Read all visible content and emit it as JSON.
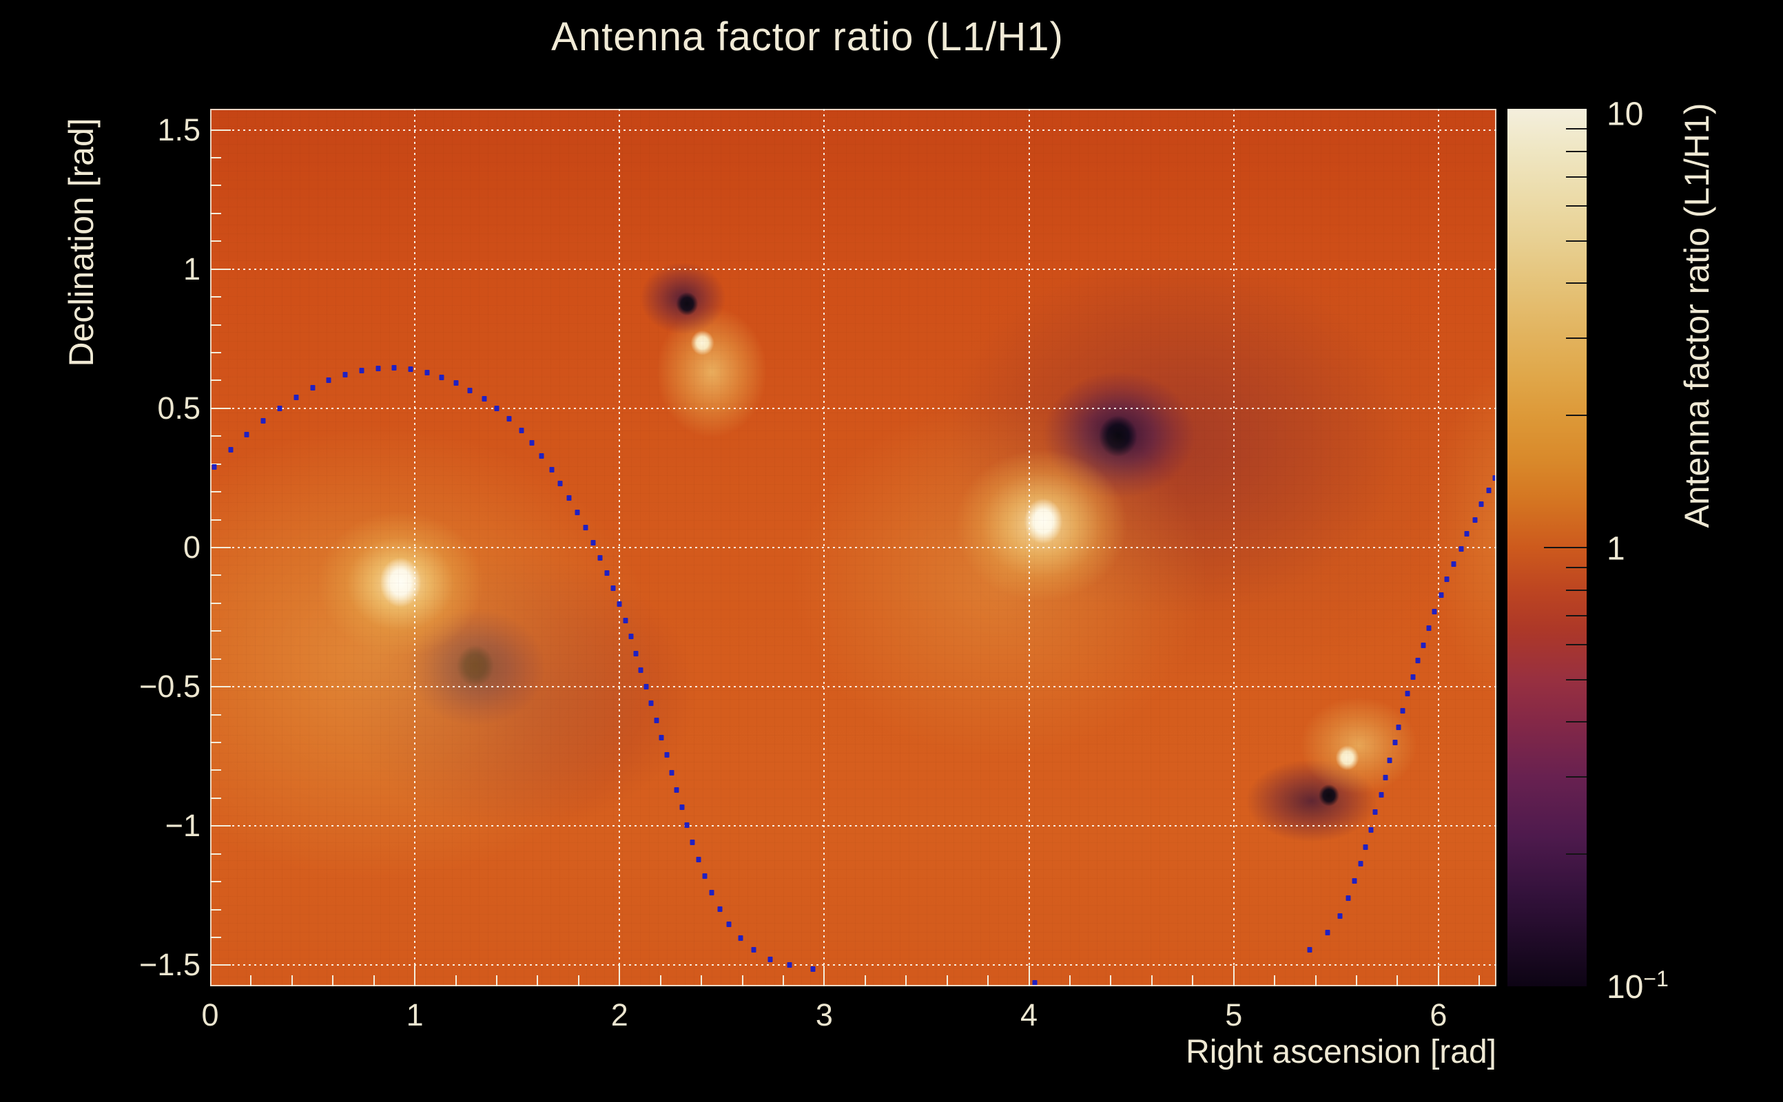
{
  "chart_data": {
    "type": "heatmap",
    "title": "Antenna factor ratio (L1/H1)",
    "xlabel": "Right ascension [rad]",
    "ylabel": "Declination [rad]",
    "zlabel": "Antenna factor ratio (L1/H1)",
    "x_range": [
      0,
      6.2832
    ],
    "y_range": [
      -1.5755,
      1.5755
    ],
    "z_scale": "log",
    "z_range": [
      0.1,
      10
    ],
    "x_major_ticks": [
      0,
      1,
      2,
      3,
      4,
      5,
      6
    ],
    "x_tick_labels": [
      "0",
      "1",
      "2",
      "3",
      "4",
      "5",
      "6"
    ],
    "x_minor_step": 0.2,
    "y_major_ticks": [
      1.5,
      1,
      0.5,
      0,
      -0.5,
      -1,
      -1.5
    ],
    "y_tick_labels": [
      "1.5",
      "1",
      "0.5",
      "0",
      "−0.5",
      "−1",
      "−1.5"
    ],
    "y_minor_step": 0.1,
    "grid": {
      "style": "dotted",
      "color": "#fdfaf2",
      "at_x": [
        1,
        2,
        3,
        4,
        5,
        6
      ],
      "at_y": [
        1.5,
        1.0,
        0.5,
        0,
        -0.5,
        -1.0,
        -1.5
      ]
    },
    "text_color": "#efe9d4",
    "background_color": "#000000",
    "extrema": [
      {
        "kind": "maximum",
        "ra": 0.93,
        "dec": -0.13,
        "value": 10
      },
      {
        "kind": "minimum",
        "ra": 1.3,
        "dec": -0.43,
        "value": 0.1
      },
      {
        "kind": "minimum",
        "ra": 2.33,
        "dec": 0.88,
        "value": 0.1
      },
      {
        "kind": "maximum",
        "ra": 2.41,
        "dec": 0.74,
        "value": 10
      },
      {
        "kind": "maximum",
        "ra": 4.07,
        "dec": 0.1,
        "value": 10
      },
      {
        "kind": "minimum",
        "ra": 4.44,
        "dec": 0.4,
        "value": 0.1
      },
      {
        "kind": "maximum",
        "ra": 5.56,
        "dec": -0.76,
        "value": 10
      },
      {
        "kind": "minimum",
        "ra": 5.47,
        "dec": -0.89,
        "value": 0.1
      }
    ],
    "track_marker_color": "#2020c2",
    "track_points": [
      [
        0.02,
        0.29
      ],
      [
        0.1,
        0.35
      ],
      [
        0.18,
        0.405
      ],
      [
        0.26,
        0.455
      ],
      [
        0.34,
        0.5
      ],
      [
        0.42,
        0.54
      ],
      [
        0.5,
        0.573
      ],
      [
        0.58,
        0.6
      ],
      [
        0.66,
        0.621
      ],
      [
        0.74,
        0.635
      ],
      [
        0.82,
        0.643
      ],
      [
        0.9,
        0.645
      ],
      [
        0.98,
        0.64
      ],
      [
        1.06,
        0.628
      ],
      [
        1.13,
        0.612
      ],
      [
        1.2,
        0.59
      ],
      [
        1.27,
        0.565
      ],
      [
        1.34,
        0.534
      ],
      [
        1.4,
        0.5
      ],
      [
        1.46,
        0.462
      ],
      [
        1.52,
        0.42
      ],
      [
        1.57,
        0.376
      ],
      [
        1.62,
        0.33
      ],
      [
        1.67,
        0.28
      ],
      [
        1.71,
        0.23
      ],
      [
        1.755,
        0.178
      ],
      [
        1.795,
        0.125
      ],
      [
        1.835,
        0.072
      ],
      [
        1.87,
        0.018
      ],
      [
        1.905,
        -0.037
      ],
      [
        1.94,
        -0.092
      ],
      [
        1.97,
        -0.147
      ],
      [
        2.0,
        -0.204
      ],
      [
        2.03,
        -0.262
      ],
      [
        2.055,
        -0.32
      ],
      [
        2.08,
        -0.38
      ],
      [
        2.105,
        -0.44
      ],
      [
        2.13,
        -0.5
      ],
      [
        2.155,
        -0.56
      ],
      [
        2.18,
        -0.62
      ],
      [
        2.205,
        -0.682
      ],
      [
        2.23,
        -0.745
      ],
      [
        2.255,
        -0.808
      ],
      [
        2.28,
        -0.87
      ],
      [
        2.305,
        -0.933
      ],
      [
        2.33,
        -0.996
      ],
      [
        2.355,
        -1.058
      ],
      [
        2.385,
        -1.12
      ],
      [
        2.415,
        -1.18
      ],
      [
        2.45,
        -1.24
      ],
      [
        2.49,
        -1.298
      ],
      [
        2.535,
        -1.352
      ],
      [
        2.59,
        -1.402
      ],
      [
        2.655,
        -1.445
      ],
      [
        2.735,
        -1.478
      ],
      [
        2.83,
        -1.5
      ],
      [
        2.945,
        -1.513
      ],
      [
        4.03,
        -1.562
      ],
      [
        5.37,
        -1.445
      ],
      [
        5.46,
        -1.383
      ],
      [
        5.52,
        -1.322
      ],
      [
        5.56,
        -1.26
      ],
      [
        5.59,
        -1.198
      ],
      [
        5.62,
        -1.135
      ],
      [
        5.645,
        -1.075
      ],
      [
        5.67,
        -1.013
      ],
      [
        5.69,
        -0.95
      ],
      [
        5.72,
        -0.888
      ],
      [
        5.74,
        -0.826
      ],
      [
        5.762,
        -0.764
      ],
      [
        5.79,
        -0.7
      ],
      [
        5.806,
        -0.645
      ],
      [
        5.825,
        -0.586
      ],
      [
        5.85,
        -0.525
      ],
      [
        5.875,
        -0.465
      ],
      [
        5.9,
        -0.405
      ],
      [
        5.925,
        -0.35
      ],
      [
        5.955,
        -0.29
      ],
      [
        5.98,
        -0.23
      ],
      [
        6.015,
        -0.17
      ],
      [
        6.04,
        -0.115
      ],
      [
        6.075,
        -0.06
      ],
      [
        6.11,
        -0.005
      ],
      [
        6.14,
        0.049
      ],
      [
        6.18,
        0.1
      ],
      [
        6.21,
        0.155
      ],
      [
        6.245,
        0.205
      ],
      [
        6.275,
        0.25
      ]
    ],
    "colorbar": {
      "labels": [
        {
          "text": "10",
          "sup": "",
          "value": 10
        },
        {
          "text": "1",
          "sup": "",
          "value": 1
        },
        {
          "text": "10",
          "sup": "−1",
          "value": 0.1
        }
      ],
      "major_tick_values": [
        1
      ],
      "minor_tick_values": [
        9,
        8,
        7,
        6,
        5,
        4,
        3,
        2,
        0.9,
        0.8,
        0.7,
        0.6,
        0.5,
        0.4,
        0.3,
        0.2
      ],
      "gradient_stops": [
        [
          0.0,
          "#f4efdd"
        ],
        [
          0.0485,
          "#efe6c2"
        ],
        [
          0.111,
          "#ebd9a4"
        ],
        [
          0.1505,
          "#e8d092"
        ],
        [
          0.199,
          "#e5c379"
        ],
        [
          0.2614,
          "#e2b25c"
        ],
        [
          0.301,
          "#e0a84b"
        ],
        [
          0.3495,
          "#dd9938"
        ],
        [
          0.398,
          "#d98a2b"
        ],
        [
          0.4431,
          "#d57722"
        ],
        [
          0.5,
          "#cd5a1d"
        ],
        [
          0.5485,
          "#bd4521"
        ],
        [
          0.5935,
          "#ad3828"
        ],
        [
          0.6505,
          "#983040"
        ],
        [
          0.699,
          "#842847"
        ],
        [
          0.7614,
          "#682150"
        ],
        [
          0.8286,
          "#4e1a4d"
        ],
        [
          0.8979,
          "#32113a"
        ],
        [
          0.9604,
          "#1b0923"
        ],
        [
          1.0,
          "#0d0414"
        ]
      ]
    },
    "field_layers": [
      {
        "type": "ellipse",
        "ra": 0.93,
        "dec": -0.125,
        "rx": 30,
        "ry": 36,
        "stops": [
          "#fffef6 0%",
          "#fdf8e8 50%",
          "rgba(253,248,232,0) 100%"
        ]
      },
      {
        "type": "ellipse",
        "ra": 0.93,
        "dec": -0.13,
        "rx": 120,
        "ry": 105,
        "stops": [
          "rgba(248,228,176,0.95) 0%",
          "rgba(240,196,112,0.8) 35%",
          "rgba(230,160,70,0.5) 65%",
          "rgba(226,150,64,0) 100%"
        ]
      },
      {
        "type": "ellipse",
        "ra": 0.82,
        "dec": -0.38,
        "rx": 400,
        "ry": 330,
        "stops": [
          "rgba(232,160,70,0.65) 0%",
          "rgba(226,143,56,0.45) 50%",
          "rgba(222,135,50,0) 100%"
        ]
      },
      {
        "type": "ellipse",
        "ra": 1.295,
        "dec": -0.425,
        "rx": 27,
        "ry": 30,
        "stops": [
          "#0a0712 0%",
          "#140b20 55%",
          "rgba(20,11,32,0) 100%"
        ]
      },
      {
        "type": "ellipse",
        "ra": 1.3,
        "dec": -0.43,
        "rx": 100,
        "ry": 85,
        "stops": [
          "rgba(42,18,58,0.9) 0%",
          "rgba(84,30,70,0.7) 45%",
          "rgba(120,40,60,0.4) 75%",
          "rgba(130,44,56,0) 100%"
        ]
      },
      {
        "type": "ellipse",
        "ra": 1.5,
        "dec": -0.52,
        "rx": 260,
        "ry": 200,
        "stops": [
          "rgba(150,48,42,0.55) 0%",
          "rgba(160,55,40,0.3) 60%",
          "rgba(165,60,38,0) 100%"
        ]
      },
      {
        "type": "ellipse",
        "ra": 2.33,
        "dec": 0.875,
        "rx": 16,
        "ry": 17,
        "stops": [
          "#0c0913 0%",
          "rgba(18,12,26,0.95) 55%",
          "rgba(18,12,26,0) 100%"
        ]
      },
      {
        "type": "ellipse",
        "ra": 2.31,
        "dec": 0.895,
        "rx": 62,
        "ry": 52,
        "stops": [
          "rgba(60,22,62,0.8) 0%",
          "rgba(116,40,58,0.55) 55%",
          "rgba(150,60,50,0) 100%"
        ]
      },
      {
        "type": "ellipse",
        "ra": 2.405,
        "dec": 0.735,
        "rx": 17,
        "ry": 18,
        "stops": [
          "#fdf6dc 0%",
          "rgba(250,238,200,0.95) 50%",
          "rgba(250,238,200,0) 100%"
        ]
      },
      {
        "type": "ellipse",
        "ra": 2.45,
        "dec": 0.63,
        "rx": 80,
        "ry": 95,
        "stops": [
          "rgba(240,196,110,0.8) 0%",
          "rgba(232,165,75,0.5) 55%",
          "rgba(228,155,66,0) 100%"
        ]
      },
      {
        "type": "ellipse",
        "ra": 4.07,
        "dec": 0.095,
        "rx": 28,
        "ry": 33,
        "stops": [
          "#fffdf2 0%",
          "#fdf8e6 50%",
          "rgba(253,248,230,0) 100%"
        ]
      },
      {
        "type": "ellipse",
        "ra": 4.06,
        "dec": 0.08,
        "rx": 125,
        "ry": 110,
        "stops": [
          "rgba(247,224,165,0.9) 0%",
          "rgba(238,190,105,0.75) 40%",
          "rgba(230,160,72,0.45) 70%",
          "rgba(228,152,64,0) 100%"
        ]
      },
      {
        "type": "ellipse",
        "ra": 3.86,
        "dec": -0.12,
        "rx": 300,
        "ry": 260,
        "stops": [
          "rgba(230,158,70,0.5) 0%",
          "rgba(225,142,58,0.3) 55%",
          "rgba(222,136,52,0) 100%"
        ]
      },
      {
        "type": "ellipse",
        "ra": 4.435,
        "dec": 0.4,
        "rx": 28,
        "ry": 30,
        "stops": [
          "#0a0810 0%",
          "#120a1c 55%",
          "rgba(18,10,28,0) 100%"
        ]
      },
      {
        "type": "ellipse",
        "ra": 4.44,
        "dec": 0.405,
        "rx": 110,
        "ry": 92,
        "stops": [
          "rgba(40,16,56,0.92) 0%",
          "rgba(82,30,72,0.7) 45%",
          "rgba(118,40,62,0.42) 75%",
          "rgba(126,44,58,0) 100%"
        ]
      },
      {
        "type": "ellipse",
        "ra": 4.72,
        "dec": 0.4,
        "rx": 330,
        "ry": 260,
        "stops": [
          "rgba(138,44,46,0.5) 0%",
          "rgba(152,52,40,0.28) 60%",
          "rgba(158,58,38,0) 100%"
        ]
      },
      {
        "type": "ellipse",
        "ra": 4.85,
        "dec": 0.3,
        "rx": 430,
        "ry": 330,
        "stops": [
          "rgba(168,62,34,0.38) 0%",
          "rgba(176,70,32,0.2) 60%",
          "rgba(180,75,32,0) 100%"
        ]
      },
      {
        "type": "ellipse",
        "ra": 5.555,
        "dec": -0.755,
        "rx": 17,
        "ry": 18,
        "stops": [
          "#fcf4da 0%",
          "rgba(250,240,205,0.95) 50%",
          "rgba(250,240,205,0) 100%"
        ]
      },
      {
        "type": "ellipse",
        "ra": 5.61,
        "dec": -0.71,
        "rx": 85,
        "ry": 70,
        "stops": [
          "rgba(238,190,105,0.75) 0%",
          "rgba(230,162,75,0.45) 55%",
          "rgba(228,154,66,0) 100%"
        ]
      },
      {
        "type": "ellipse",
        "ra": 5.465,
        "dec": -0.89,
        "rx": 15,
        "ry": 16,
        "stops": [
          "#0b0911 0%",
          "rgba(17,11,24,0.95) 55%",
          "rgba(17,11,24,0) 100%"
        ]
      },
      {
        "type": "ellipse",
        "ra": 5.38,
        "dec": -0.91,
        "rx": 95,
        "ry": 60,
        "stops": [
          "rgba(56,20,58,0.75) 0%",
          "rgba(110,38,56,0.5) 55%",
          "rgba(145,56,48,0) 100%"
        ]
      },
      {
        "type": "ellipse",
        "ra": 6.33,
        "dec": 0.05,
        "rx": 110,
        "ry": 240,
        "stops": [
          "rgba(226,140,56,0.5) 0%",
          "rgba(222,132,50,0.25) 60%",
          "rgba(220,128,48,0) 100%"
        ]
      },
      {
        "type": "linear",
        "stops": [
          "#c64515 0%",
          "#cf4f18 18%",
          "#d45a1c 50%",
          "#d65f1e 82%",
          "#d35a1c 100%"
        ]
      }
    ]
  }
}
